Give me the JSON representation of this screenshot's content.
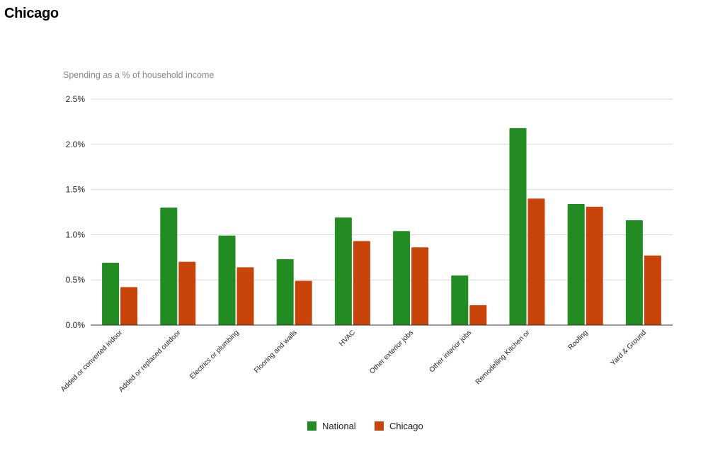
{
  "page": {
    "title": "Chicago"
  },
  "chart_data": {
    "type": "bar",
    "subtitle": "Spending as a % of household income",
    "categories": [
      "Added or converted indoor",
      "Added or replaced outdoor",
      "Electrics or plumbing",
      "Flooring and walls",
      "HVAC",
      "Other exterior jobs",
      "Other interior jobs",
      "Remodelling Kitchen or",
      "Roofing",
      "Yard & Ground"
    ],
    "series": [
      {
        "name": "National",
        "color": "#228B22",
        "values": [
          0.69,
          1.3,
          0.99,
          0.73,
          1.19,
          1.04,
          0.55,
          2.18,
          1.34,
          1.16
        ]
      },
      {
        "name": "Chicago",
        "color": "#C8440A",
        "values": [
          0.42,
          0.7,
          0.64,
          0.49,
          0.93,
          0.86,
          0.22,
          1.4,
          1.31,
          0.77
        ]
      }
    ],
    "yticks": [
      "0.0%",
      "0.5%",
      "1.0%",
      "1.5%",
      "2.0%",
      "2.5%"
    ],
    "ylim": [
      0,
      2.5
    ],
    "grid": true,
    "legend_position": "bottom"
  }
}
